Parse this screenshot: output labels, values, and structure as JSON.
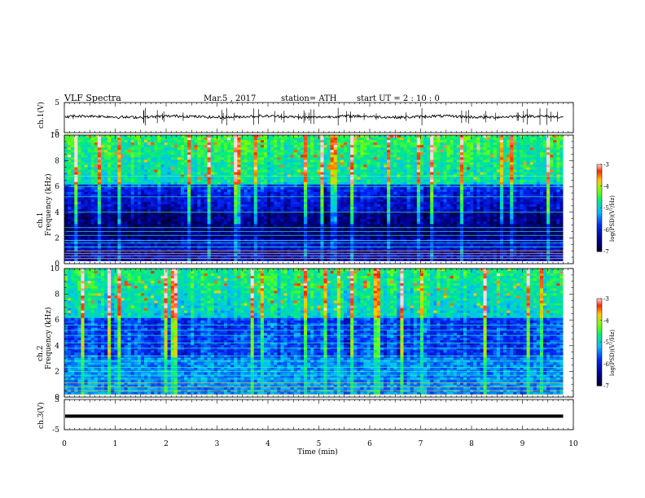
{
  "header": {
    "title": "VLF  Spectra",
    "date": "Mar.5  , 2017",
    "station": "station= ATH",
    "start": "start  UT  =   2 : 10 : 0"
  },
  "chart_data": [
    {
      "type": "line",
      "name": "ch1-waveform",
      "ylabel": "ch.1(V)",
      "ylim": [
        -5,
        5
      ],
      "yticks": [
        "5",
        "-5"
      ],
      "xlim": [
        0,
        10
      ],
      "level": 0.3
    },
    {
      "type": "heatmap",
      "name": "ch1-spectrogram",
      "ylabel": "ch.1\nFrequency  (kHz)",
      "ylim": [
        0,
        10
      ],
      "yticks": [
        "0",
        "2",
        "4",
        "6",
        "8",
        "10"
      ],
      "xlim": [
        0,
        9.8
      ],
      "colorbar": {
        "label": "log(PSD)(V²/Hz)",
        "range": [
          -7,
          -3
        ],
        "ticks": [
          "-3",
          "-4",
          "-5",
          "-6",
          "-7"
        ]
      }
    },
    {
      "type": "heatmap",
      "name": "ch2-spectrogram",
      "ylabel": "ch.2\nFrequency  (kHz)",
      "ylim": [
        0,
        10
      ],
      "yticks": [
        "0",
        "2",
        "4",
        "6",
        "8",
        "10"
      ],
      "xlim": [
        0,
        9.8
      ],
      "colorbar": {
        "label": "log(PSD)(V²/Hz)",
        "range": [
          -7,
          -3
        ],
        "ticks": [
          "-3",
          "-4",
          "-5",
          "-6",
          "-7"
        ]
      }
    },
    {
      "type": "line",
      "name": "ch3-waveform",
      "ylabel": "ch.3(V)",
      "ylim": [
        -5,
        5
      ],
      "yticks": [
        "5",
        "-5"
      ],
      "xlim": [
        0,
        10
      ],
      "level": -0.5
    }
  ],
  "xaxis": {
    "label": "Time  (min)",
    "range": [
      0,
      10
    ],
    "ticks": [
      "0",
      "1",
      "2",
      "3",
      "4",
      "5",
      "6",
      "7",
      "8",
      "9",
      "10"
    ]
  }
}
